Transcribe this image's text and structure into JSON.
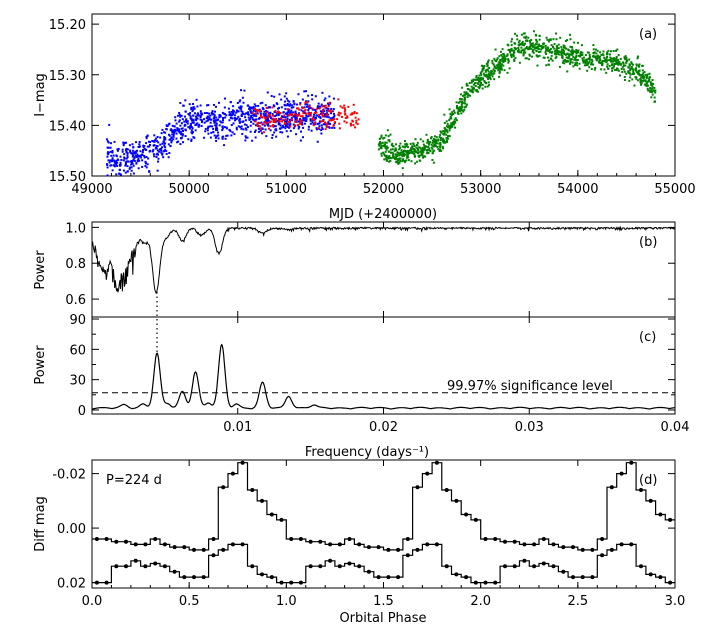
{
  "chart_data": [
    {
      "panel": "(a)",
      "type": "scatter",
      "xlabel": "MJD (+2400000)",
      "ylabel": "I−mag",
      "xlim": [
        49000,
        55000
      ],
      "ylim": [
        15.5,
        15.18
      ],
      "y_inverted": true,
      "xticks": [
        49000,
        50000,
        51000,
        52000,
        53000,
        54000,
        55000
      ],
      "xticklabels": [
        "49000",
        "50000",
        "51000",
        "52000",
        "53000",
        "54000",
        "55000"
      ],
      "yticks": [
        15.2,
        15.3,
        15.4,
        15.5
      ],
      "yticklabels": [
        "15.20",
        "15.30",
        "15.40",
        "15.50"
      ],
      "series": [
        {
          "color": "#0000ff",
          "trend": [
            [
              49150,
              15.46
            ],
            [
              49300,
              15.47
            ],
            [
              49500,
              15.455
            ],
            [
              49700,
              15.44
            ],
            [
              49900,
              15.4
            ],
            [
              50000,
              15.39
            ],
            [
              50100,
              15.38
            ],
            [
              50300,
              15.4
            ],
            [
              50500,
              15.38
            ],
            [
              50700,
              15.39
            ],
            [
              51000,
              15.38
            ],
            [
              51300,
              15.38
            ],
            [
              51500,
              15.385
            ]
          ],
          "scatter": 0.018
        },
        {
          "color": "#ff0000",
          "trend": [
            [
              50650,
              15.38
            ],
            [
              50800,
              15.39
            ],
            [
              51000,
              15.385
            ],
            [
              51200,
              15.375
            ],
            [
              51400,
              15.38
            ],
            [
              51600,
              15.38
            ],
            [
              51750,
              15.39
            ]
          ],
          "scatter": 0.012
        },
        {
          "color": "#008000",
          "trend": [
            [
              51950,
              15.44
            ],
            [
              52150,
              15.46
            ],
            [
              52300,
              15.45
            ],
            [
              52450,
              15.45
            ],
            [
              52600,
              15.43
            ],
            [
              52750,
              15.37
            ],
            [
              52900,
              15.33
            ],
            [
              53050,
              15.3
            ],
            [
              53200,
              15.28
            ],
            [
              53350,
              15.25
            ],
            [
              53500,
              15.24
            ],
            [
              53700,
              15.25
            ],
            [
              53900,
              15.26
            ],
            [
              54100,
              15.27
            ],
            [
              54300,
              15.27
            ],
            [
              54500,
              15.28
            ],
            [
              54650,
              15.3
            ],
            [
              54800,
              15.33
            ]
          ],
          "scatter": 0.012
        }
      ]
    },
    {
      "panel": "(b)",
      "type": "line",
      "xlabel": "",
      "ylabel": "Power",
      "xlim": [
        0,
        0.04
      ],
      "ylim": [
        0.5,
        1.03
      ],
      "yticks": [
        0.6,
        0.8,
        1.0
      ],
      "yticklabels": [
        "0.6",
        "0.8",
        "1.0"
      ],
      "baseline": 1.0,
      "dips": [
        [
          0.0005,
          0.85
        ],
        [
          0.001,
          0.8
        ],
        [
          0.0017,
          0.72
        ],
        [
          0.0023,
          0.8
        ],
        [
          0.0029,
          0.9
        ],
        [
          0.0036,
          0.92
        ],
        [
          0.0044,
          0.64
        ],
        [
          0.0051,
          0.95
        ],
        [
          0.0062,
          0.93
        ],
        [
          0.0075,
          0.96
        ],
        [
          0.0087,
          0.86
        ],
        [
          0.0117,
          0.97
        ],
        [
          0.0135,
          0.99
        ]
      ]
    },
    {
      "panel": "(c)",
      "type": "line",
      "xlabel": "Frequency (days⁻¹)",
      "ylabel": "Power",
      "xlim": [
        0,
        0.04
      ],
      "ylim": [
        -4,
        92
      ],
      "xticks": [
        0.01,
        0.02,
        0.03,
        0.04
      ],
      "xticklabels": [
        "0.01",
        "0.02",
        "0.03",
        "0.04"
      ],
      "yticks": [
        0,
        30,
        60,
        90
      ],
      "yticklabels": [
        "0",
        "30",
        "60",
        "90"
      ],
      "ytick_minor": [
        15,
        45,
        75
      ],
      "significance_level": 17,
      "significance_label": "99.97% significance level",
      "marked_frequency": 0.00446,
      "peaks": [
        [
          0.0022,
          3
        ],
        [
          0.0035,
          4
        ],
        [
          0.00446,
          54
        ],
        [
          0.0052,
          4
        ],
        [
          0.0062,
          16
        ],
        [
          0.0071,
          36
        ],
        [
          0.008,
          5
        ],
        [
          0.0089,
          62
        ],
        [
          0.0099,
          4
        ],
        [
          0.0117,
          25
        ],
        [
          0.0135,
          12
        ],
        [
          0.0152,
          3
        ]
      ]
    },
    {
      "panel": "(d)",
      "type": "line",
      "annotation": "P=224 d",
      "xlabel": "Orbital Phase",
      "ylabel": "Diff mag",
      "xlim": [
        0,
        3
      ],
      "ylim": [
        0.022,
        -0.025
      ],
      "y_inverted": true,
      "xticks": [
        0.0,
        0.5,
        1.0,
        1.5,
        2.0,
        2.5,
        3.0
      ],
      "xticklabels": [
        "0.0",
        "0.5",
        "1.0",
        "1.5",
        "2.0",
        "2.5",
        "3.0"
      ],
      "yticks": [
        -0.02,
        0.0,
        0.02
      ],
      "yticklabels": [
        "-0.02",
        "0.00",
        "0.02"
      ],
      "bin_width": 0.05,
      "series": [
        {
          "phase_mag": [
            0.004,
            0.004,
            0.005,
            0.005,
            0.006,
            0.006,
            0.004,
            0.006,
            0.007,
            0.007,
            0.008,
            0.008,
            0.004,
            -0.015,
            -0.02,
            -0.024,
            -0.014,
            -0.01,
            -0.005,
            -0.003
          ]
        },
        {
          "phase_mag": [
            0.02,
            0.02,
            0.014,
            0.014,
            0.012,
            0.014,
            0.013,
            0.014,
            0.016,
            0.018,
            0.018,
            0.018,
            0.01,
            0.008,
            0.006,
            0.006,
            0.014,
            0.017,
            0.018,
            0.02
          ]
        }
      ]
    }
  ]
}
